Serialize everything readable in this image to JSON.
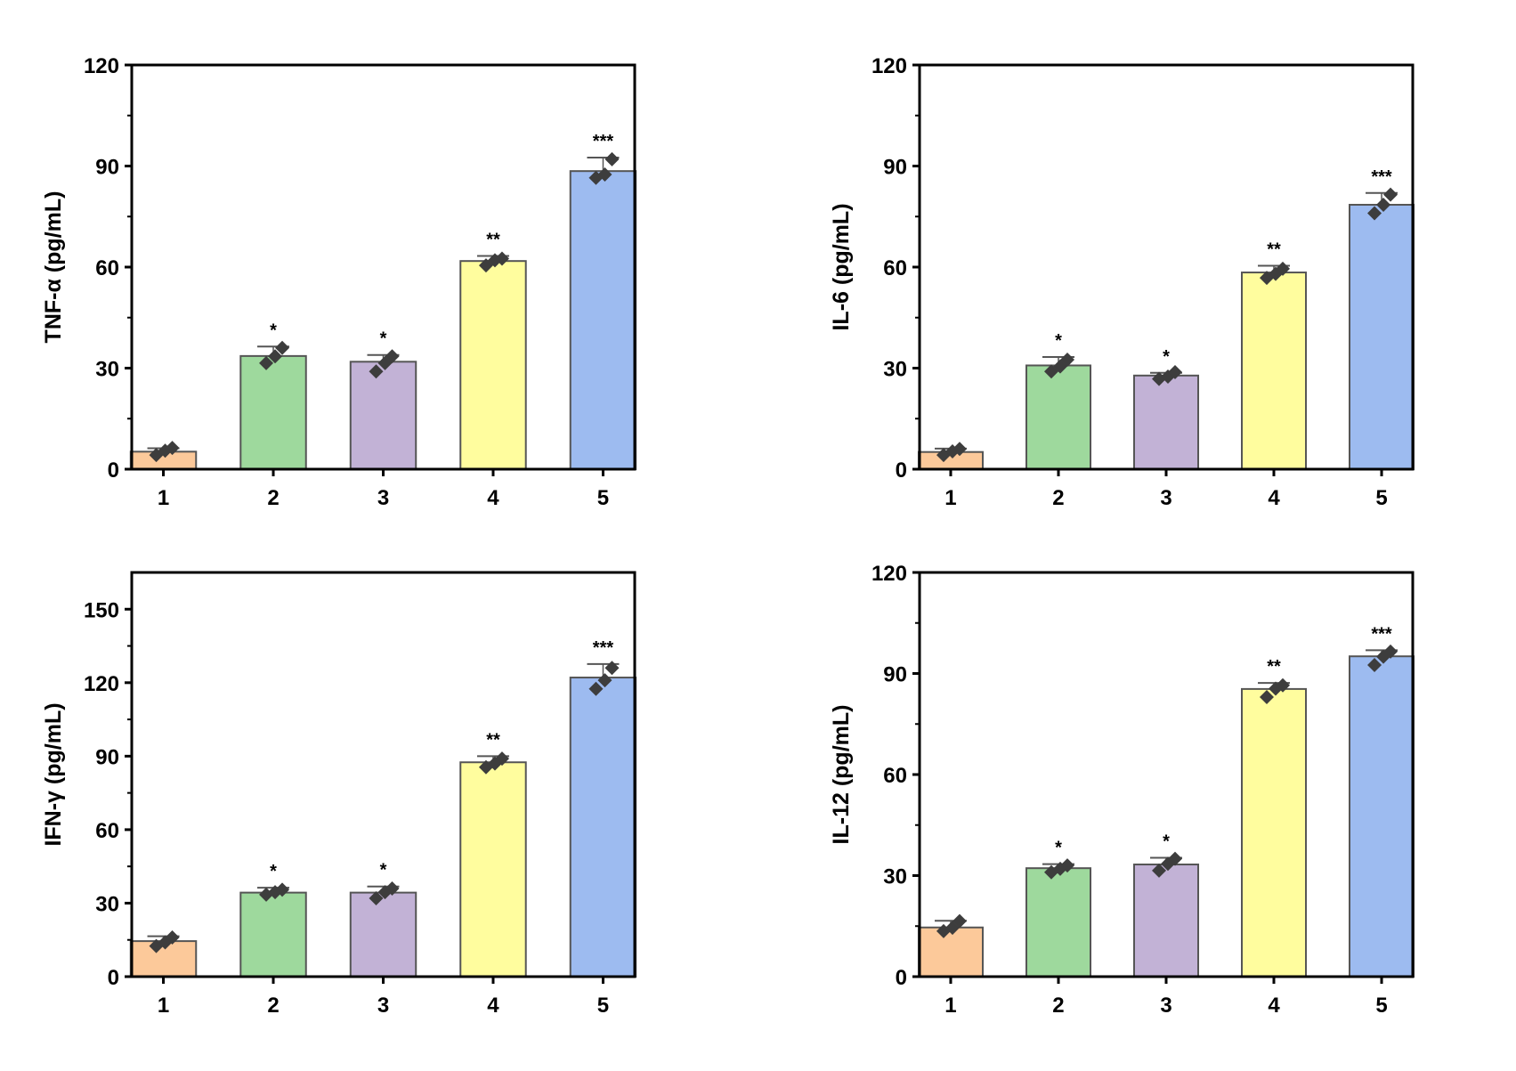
{
  "chart_data": [
    {
      "type": "bar",
      "title": "",
      "xlabel": "",
      "ylabel": "TNF-α (pg/mL)",
      "categories": [
        "1",
        "2",
        "3",
        "4",
        "5"
      ],
      "values": [
        5.2,
        33.6,
        31.9,
        61.8,
        88.5
      ],
      "errors": [
        1.0,
        2.8,
        2.0,
        1.5,
        4.0
      ],
      "points": [
        [
          4.2,
          5.5,
          6.3
        ],
        [
          31.5,
          33.5,
          36.0
        ],
        [
          29.0,
          31.5,
          33.5
        ],
        [
          60.5,
          62.0,
          62.5
        ],
        [
          86.5,
          87.5,
          92.0
        ]
      ],
      "significance": [
        "",
        "*",
        "*",
        "**",
        "***"
      ],
      "ylim": [
        0,
        120
      ],
      "yticks": [
        "0",
        "30",
        "60",
        "90",
        "120"
      ],
      "ytick_values": [
        0,
        30,
        60,
        90,
        120
      ],
      "minor_step": 15,
      "grid": false
    },
    {
      "type": "bar",
      "title": "",
      "xlabel": "",
      "ylabel": "IL-6 (pg/mL)",
      "categories": [
        "1",
        "2",
        "3",
        "4",
        "5"
      ],
      "values": [
        5.1,
        30.8,
        27.8,
        58.4,
        78.5
      ],
      "errors": [
        1.0,
        2.5,
        0.8,
        2.0,
        3.5
      ],
      "points": [
        [
          4.2,
          5.3,
          6.0
        ],
        [
          29.0,
          30.5,
          32.5
        ],
        [
          26.8,
          27.5,
          28.8
        ],
        [
          56.8,
          58.0,
          59.5
        ],
        [
          76.0,
          78.5,
          81.5
        ]
      ],
      "significance": [
        "",
        "*",
        "*",
        "**",
        "***"
      ],
      "ylim": [
        0,
        120
      ],
      "yticks": [
        "0",
        "30",
        "60",
        "90",
        "120"
      ],
      "ytick_values": [
        0,
        30,
        60,
        90,
        120
      ],
      "minor_step": 15,
      "grid": false
    },
    {
      "type": "bar",
      "title": "",
      "xlabel": "",
      "ylabel": "IFN-γ (pg/mL)",
      "categories": [
        "1",
        "2",
        "3",
        "4",
        "5"
      ],
      "values": [
        14.5,
        34.3,
        34.3,
        87.5,
        122.1
      ],
      "errors": [
        2.0,
        2.0,
        2.5,
        2.5,
        5.5
      ],
      "points": [
        [
          12.5,
          14.0,
          16.0
        ],
        [
          33.5,
          34.5,
          35.5
        ],
        [
          32.0,
          34.5,
          36.0
        ],
        [
          85.5,
          87.0,
          89.0
        ],
        [
          117.5,
          121.0,
          126.0
        ]
      ],
      "significance": [
        "",
        "*",
        "*",
        "**",
        "***"
      ],
      "ylim": [
        0,
        165
      ],
      "yticks": [
        "0",
        "30",
        "60",
        "90",
        "120",
        "150"
      ],
      "ytick_values": [
        0,
        30,
        60,
        90,
        120,
        150
      ],
      "minor_step": 15,
      "grid": false
    },
    {
      "type": "bar",
      "title": "",
      "xlabel": "",
      "ylabel": "IL-12 (pg/mL)",
      "categories": [
        "1",
        "2",
        "3",
        "4",
        "5"
      ],
      "values": [
        14.6,
        32.2,
        33.3,
        85.4,
        95.1
      ],
      "errors": [
        2.0,
        1.2,
        2.0,
        1.8,
        1.8
      ],
      "points": [
        [
          13.5,
          14.5,
          16.5
        ],
        [
          31.0,
          32.0,
          33.0
        ],
        [
          31.5,
          33.5,
          35.0
        ],
        [
          83.0,
          85.5,
          86.5
        ],
        [
          92.5,
          95.0,
          96.5
        ]
      ],
      "significance": [
        "",
        "*",
        "*",
        "**",
        "***"
      ],
      "ylim": [
        0,
        120
      ],
      "yticks": [
        "0",
        "30",
        "60",
        "90",
        "120"
      ],
      "ytick_values": [
        0,
        30,
        60,
        90,
        120
      ],
      "minor_step": 15,
      "grid": false
    }
  ],
  "colors": {
    "bars": [
      "#FCC99A",
      "#9ED99D",
      "#C2B2D6",
      "#FFFD9E",
      "#9DBBF0"
    ],
    "bar_edge": "#555555",
    "points": "#3D3D3D",
    "errorbar": "#555555",
    "axis": "#000000"
  }
}
